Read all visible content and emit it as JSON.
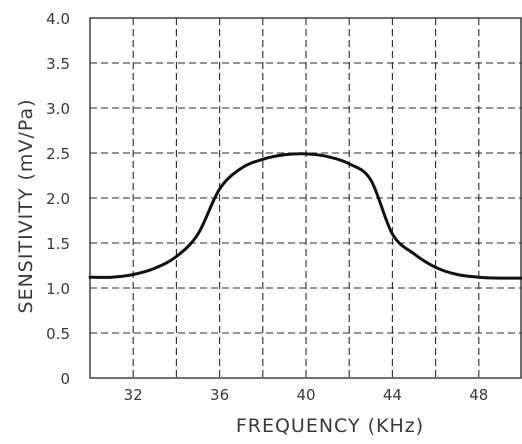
{
  "chart_data": {
    "type": "line",
    "title": "",
    "xlabel": "FREQUENCY (KHz)",
    "ylabel": "SENSITIVITY (mV/Pa)",
    "xlim": [
      30,
      50
    ],
    "ylim": [
      0,
      4.0
    ],
    "x_ticks": [
      32,
      36,
      40,
      44,
      48
    ],
    "y_ticks": [
      "0",
      "0.5",
      "1.0",
      "1.5",
      "2.0",
      "2.5",
      "3.0",
      "3.5",
      "4.0"
    ],
    "y_tick_values": [
      0,
      0.5,
      1.0,
      1.5,
      2.0,
      2.5,
      3.0,
      3.5,
      4.0
    ],
    "grid": true,
    "series": [
      {
        "x": [
          30,
          31,
          32,
          33,
          34,
          35,
          36,
          37,
          38,
          39,
          40,
          41,
          42,
          43,
          44,
          45,
          46,
          47,
          48,
          49,
          50
        ],
        "y": [
          1.12,
          1.12,
          1.15,
          1.22,
          1.35,
          1.6,
          2.1,
          2.33,
          2.43,
          2.48,
          2.49,
          2.46,
          2.38,
          2.2,
          1.6,
          1.38,
          1.23,
          1.15,
          1.12,
          1.11,
          1.11
        ]
      }
    ],
    "colors": {
      "line": "#111111",
      "grid": "#2a2a2a",
      "text": "#3a3a3a"
    }
  }
}
